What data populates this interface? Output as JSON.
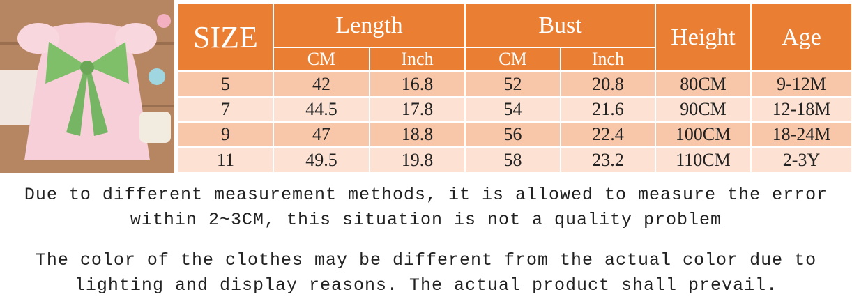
{
  "table": {
    "header": {
      "size": "SIZE",
      "length": "Length",
      "bust": "Bust",
      "height": "Height",
      "age": "Age",
      "sub": [
        "CM",
        "Inch",
        "CM",
        "Inch"
      ]
    },
    "rows": [
      [
        "5",
        "42",
        "16.8",
        "52",
        "20.8",
        "80CM",
        "9-12M"
      ],
      [
        "7",
        "44.5",
        "17.8",
        "54",
        "21.6",
        "90CM",
        "12-18M"
      ],
      [
        "9",
        "47",
        "18.8",
        "56",
        "22.4",
        "100CM",
        "18-24M"
      ],
      [
        "11",
        "49.5",
        "19.8",
        "58",
        "23.2",
        "110CM",
        "2-3Y"
      ]
    ]
  },
  "notes": [
    "Due to different measurement methods, it is allowed to measure the error within 2~3CM, this situation is not a quality problem",
    "The color of the clothes may be different from the actual color due to lighting and display reasons. The actual product shall prevail."
  ]
}
